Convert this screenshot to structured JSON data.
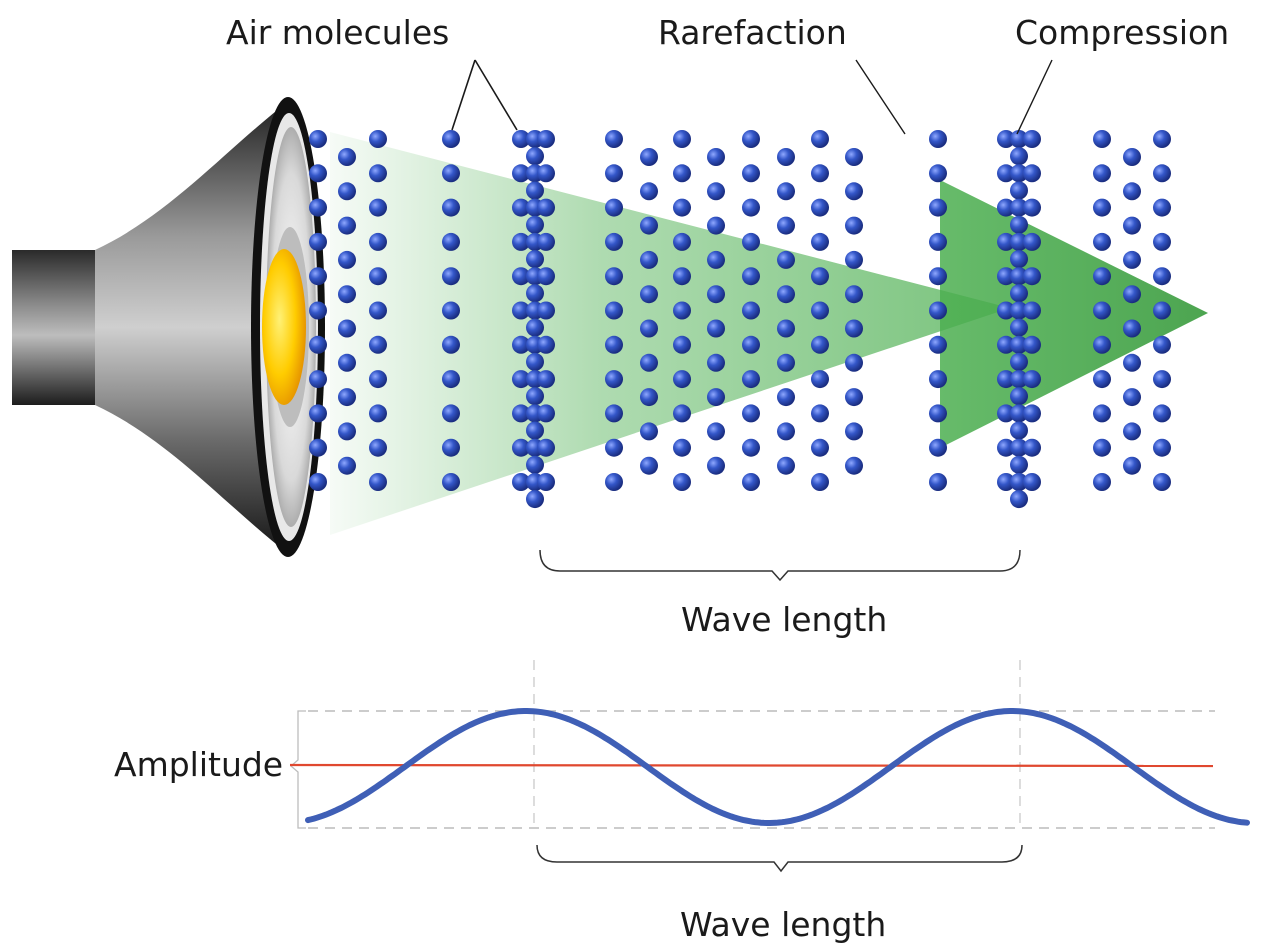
{
  "labels": {
    "air_molecules": "Air molecules",
    "rarefaction": "Rarefaction",
    "compression": "Compression",
    "wave_length_top": "Wave length",
    "amplitude": "Amplitude",
    "wave_length_bottom": "Wave length"
  },
  "colors": {
    "molecule": "#2f4fb8",
    "molecule_highlight": "#7f9dff",
    "wave_line": "#3f5fb6",
    "baseline": "#e0482f",
    "sound_beam": "#4caf50",
    "speaker_body": "#3a3a3a",
    "speaker_center": "#f5b800",
    "guide_line": "#bcbcbc"
  },
  "icons": {
    "source": "loudspeaker-icon"
  }
}
